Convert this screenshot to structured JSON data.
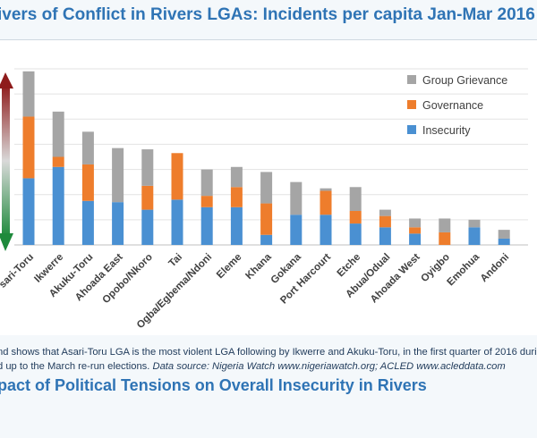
{
  "page": {
    "title": "ivers of Conflict in Rivers LGAs: Incidents per capita Jan-Mar 2016",
    "caption_line1": "nd shows that Asari-Toru LGA is the most violent LGA following by Ikwerre and Akuku-Toru, in the first quarter of 2016 during",
    "caption_line2_plain": "d up to the March re-run elections. ",
    "caption_line2_source": "Data source: Nigeria Watch www.nigeriawatch.org; ACLED  www.acleddata.com",
    "subtitle": "pact of Political Tensions on Overall Insecurity in Rivers"
  },
  "chart_data": {
    "type": "bar",
    "stacked": true,
    "categories": [
      "sari-Toru",
      "Ikwerre",
      "Akuku-Toru",
      "Ahoada East",
      "Opobo/Nkoro",
      "Tai",
      "Ogba/Egbema/Ndoni",
      "Eleme",
      "Khana",
      "Gokana",
      "Port Harcourt",
      "Etche",
      "Abua/Odual",
      "Ahoada West",
      "Oyigbo",
      "Emohua",
      "Andoni"
    ],
    "series": [
      {
        "name": "Insecurity",
        "color": "#4a90d2",
        "values": [
          5.3,
          6.2,
          3.5,
          3.4,
          2.8,
          3.6,
          3.0,
          3.0,
          0.8,
          2.4,
          2.4,
          1.7,
          1.4,
          0.9,
          0.0,
          1.4,
          0.5
        ]
      },
      {
        "name": "Governance",
        "color": "#ee7d2c",
        "values": [
          4.9,
          0.8,
          2.9,
          0.0,
          1.9,
          3.7,
          0.9,
          1.6,
          2.5,
          0.0,
          1.9,
          1.0,
          0.9,
          0.5,
          1.0,
          0.0,
          0.0
        ]
      },
      {
        "name": "Group Grievance",
        "color": "#a5a5a5",
        "values": [
          3.6,
          3.6,
          2.6,
          4.3,
          2.9,
          0.0,
          2.1,
          1.6,
          2.5,
          2.6,
          0.2,
          1.9,
          0.5,
          0.7,
          1.1,
          0.6,
          0.7
        ]
      }
    ],
    "ylim": [
      0,
      14
    ],
    "grid": true,
    "legend": "top-right",
    "axis_arrow_colors": [
      "#8e1b1b",
      "#1e8a3c"
    ]
  }
}
